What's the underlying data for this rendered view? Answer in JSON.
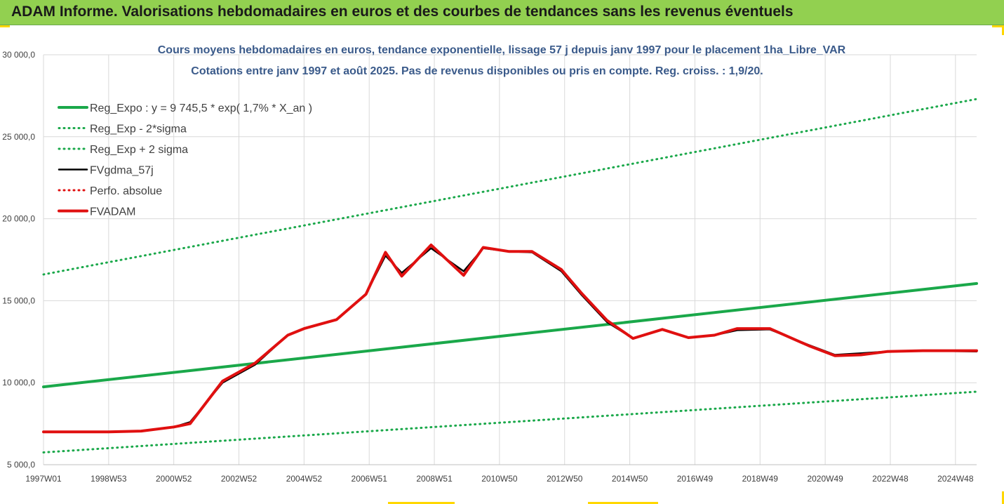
{
  "header": {
    "title": "ADAM Informe. Valorisations hebdomadaires en euros et des courbes de tendances sans les revenus éventuels"
  },
  "colors": {
    "header_bg": "#92d050",
    "trend": "#1aa84a",
    "band": "#1aa84a",
    "fv_line": "#000000",
    "perfo": "#e01010",
    "adam": "#e01010",
    "title": "#3a5a8a"
  },
  "chart_data": {
    "type": "line",
    "title": "Cours moyens hebdomadaires en euros, tendance exponentielle, lissage 57 j depuis janv 1997  pour le placement 1ha_Libre_VAR",
    "subtitle": "Cotations entre janv 1997 et août 2025.  Pas de revenus disponibles ou pris en compte. Reg. croiss. : 1,9/20.",
    "xlabel": "",
    "ylabel": "",
    "ylim": [
      5000,
      30000
    ],
    "yticks": [
      5000,
      10000,
      15000,
      20000,
      25000,
      30000
    ],
    "ytick_labels": [
      "5 000,0",
      "10 000,0",
      "15 000,0",
      "20 000,0",
      "25 000,0",
      "30 000,0"
    ],
    "xlim": [
      1997.0,
      2025.65
    ],
    "xticks": [
      1997.0,
      1999.0,
      2001.0,
      2003.0,
      2005.0,
      2007.0,
      2009.0,
      2011.0,
      2013.0,
      2015.0,
      2017.0,
      2019.0,
      2021.0,
      2023.0,
      2025.0
    ],
    "xtick_labels": [
      "1997W01",
      "1998W53",
      "2000W52",
      "2002W52",
      "2004W52",
      "2006W51",
      "2008W51",
      "2010W50",
      "2012W50",
      "2014W50",
      "2016W49",
      "2018W49",
      "2020W49",
      "2022W48",
      "2024W48"
    ],
    "grid": true,
    "legend_position": "top-left",
    "series": [
      {
        "name": "Reg_Expo : y = 9 745,5 * exp( 1,7% *  X_an )",
        "style": "solid-thick",
        "color": "#1aa84a",
        "x": [
          1997.0,
          2025.65
        ],
        "y": [
          9745.5,
          16050
        ]
      },
      {
        "name": "Reg_Exp - 2*sigma",
        "style": "dotted",
        "color": "#1aa84a",
        "x": [
          1997.0,
          2025.65
        ],
        "y": [
          5750,
          9450
        ]
      },
      {
        "name": "Reg_Exp + 2 sigma",
        "style": "dotted",
        "color": "#1aa84a",
        "x": [
          1997.0,
          2025.65
        ],
        "y": [
          16600,
          27300
        ]
      },
      {
        "name": "FVgdma_57j",
        "style": "solid",
        "color": "#000000",
        "x": [
          1997.0,
          1999.0,
          2000.0,
          2001.0,
          2001.5,
          2002.5,
          2003.5,
          2004.5,
          2005.0,
          2006.0,
          2006.9,
          2007.5,
          2008.0,
          2008.9,
          2009.9,
          2010.5,
          2011.3,
          2012.0,
          2012.9,
          2013.5,
          2014.3,
          2015.1,
          2016.0,
          2016.8,
          2017.6,
          2018.3,
          2019.3,
          2020.5,
          2021.3,
          2022.1,
          2022.9,
          2024.0,
          2025.65
        ],
        "y": [
          7000,
          7000,
          7050,
          7300,
          7600,
          10000,
          11100,
          12900,
          13300,
          13850,
          15400,
          17750,
          16700,
          18200,
          16800,
          18200,
          18000,
          17950,
          16800,
          15400,
          13700,
          12700,
          13250,
          12750,
          12900,
          13200,
          13250,
          12300,
          11700,
          11800,
          11900,
          11950,
          11900
        ]
      },
      {
        "name": "Perfo. absolue",
        "style": "dotted",
        "color": "#e01010",
        "x": [
          1997.0,
          1999.0,
          2000.0,
          2001.0,
          2001.5,
          2002.5,
          2003.5,
          2004.5,
          2005.0,
          2006.0,
          2006.9,
          2007.5,
          2008.0,
          2008.9,
          2009.9,
          2010.5,
          2011.3,
          2012.0,
          2012.9,
          2013.5,
          2014.3,
          2015.1,
          2016.0,
          2016.8,
          2017.6,
          2018.3,
          2019.3,
          2020.5,
          2021.3,
          2022.1,
          2022.9,
          2024.0,
          2025.65
        ],
        "y": [
          7000,
          7000,
          7050,
          7300,
          7500,
          10100,
          11200,
          12900,
          13300,
          13850,
          15400,
          17950,
          16500,
          18400,
          16550,
          18250,
          18000,
          18000,
          16900,
          15500,
          13800,
          12700,
          13250,
          12750,
          12900,
          13300,
          13300,
          12250,
          11650,
          11700,
          11900,
          11950,
          11950
        ]
      },
      {
        "name": "FVADAM",
        "style": "solid-thick",
        "color": "#e01010",
        "x": [
          1997.0,
          1999.0,
          2000.0,
          2001.0,
          2001.5,
          2002.5,
          2003.5,
          2004.5,
          2005.0,
          2006.0,
          2006.9,
          2007.5,
          2008.0,
          2008.9,
          2009.9,
          2010.5,
          2011.3,
          2012.0,
          2012.9,
          2013.5,
          2014.3,
          2015.1,
          2016.0,
          2016.8,
          2017.6,
          2018.3,
          2019.3,
          2020.5,
          2021.3,
          2022.1,
          2022.9,
          2024.0,
          2025.65
        ],
        "y": [
          7000,
          7000,
          7050,
          7300,
          7500,
          10100,
          11200,
          12900,
          13300,
          13850,
          15400,
          17950,
          16500,
          18400,
          16550,
          18250,
          18000,
          18000,
          16900,
          15500,
          13800,
          12700,
          13250,
          12750,
          12900,
          13300,
          13300,
          12250,
          11650,
          11700,
          11900,
          11950,
          11950
        ]
      }
    ]
  }
}
